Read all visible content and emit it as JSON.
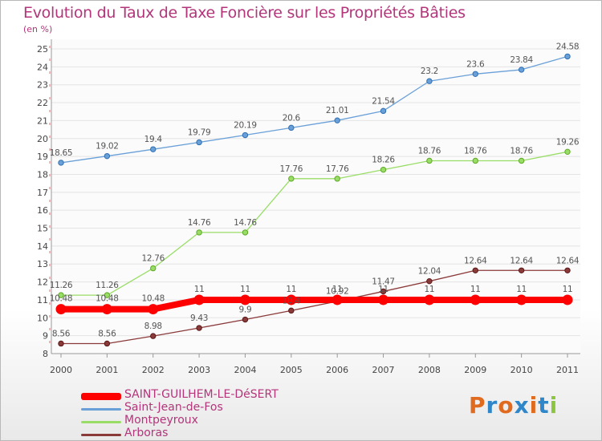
{
  "title": "Evolution du Taux de Taxe Foncière sur les Propriétés Bâties",
  "subtitle": "(en %)",
  "logo": {
    "text": "Proxiti",
    "letters": [
      "P",
      "r",
      "o",
      "x",
      "i",
      "t",
      "i"
    ],
    "letter_colors": [
      "#e06a1e",
      "#2f86c8",
      "#e06a1e",
      "#2f86c8",
      "#e06a1e",
      "#2f86c8",
      "#8cc63e"
    ]
  },
  "chart_data": {
    "type": "line",
    "title": "Evolution du Taux de Taxe Foncière sur les Propriétés Bâties",
    "ylabel": "(en %)",
    "xlabel": "",
    "x": [
      "2000",
      "2001",
      "2002",
      "2003",
      "2004",
      "2005",
      "2006",
      "2007",
      "2008",
      "2009",
      "2010",
      "2011"
    ],
    "ylim": [
      8,
      25
    ],
    "yticks": [
      8,
      9,
      10,
      11,
      12,
      13,
      14,
      15,
      16,
      17,
      18,
      19,
      20,
      21,
      22,
      23,
      24,
      25
    ],
    "grid": "horizontal",
    "legend_position": "bottom-left",
    "series": [
      {
        "name": "SAINT-GUILHEM-LE-DéSERT",
        "color": "#ff0000",
        "values": [
          10.48,
          10.48,
          10.48,
          11,
          11,
          11,
          11,
          11,
          11,
          11,
          11,
          11
        ],
        "labels": [
          "10.48",
          "10.48",
          "10.48",
          "11",
          "11",
          "11",
          "11",
          "11",
          "11",
          "11",
          "11",
          "11"
        ]
      },
      {
        "name": "Saint-Jean-de-Fos",
        "color": "#6aa0d8",
        "values": [
          18.65,
          19.02,
          19.4,
          19.79,
          20.19,
          20.6,
          21.01,
          21.54,
          23.2,
          23.6,
          23.84,
          24.58
        ],
        "labels": [
          "18.65",
          "19.02",
          "19.4",
          "19.79",
          "20.19",
          "20.6",
          "21.01",
          "21.54",
          "23.2",
          "23.6",
          "23.84",
          "24.58"
        ]
      },
      {
        "name": "Montpeyroux",
        "color": "#99dd66",
        "values": [
          11.26,
          11.26,
          12.76,
          14.76,
          14.76,
          17.76,
          17.76,
          18.26,
          18.76,
          18.76,
          18.76,
          19.26
        ],
        "labels": [
          "11.26",
          "11.26",
          "12.76",
          "14.76",
          "14.76",
          "17.76",
          "17.76",
          "18.26",
          "18.76",
          "18.76",
          "18.76",
          "19.26"
        ]
      },
      {
        "name": "Arboras",
        "color": "#8b3a3a",
        "values": [
          8.56,
          8.56,
          8.98,
          9.43,
          9.9,
          10.4,
          10.92,
          11.47,
          12.04,
          12.64,
          12.64,
          12.64
        ],
        "labels": [
          "8.56",
          "8.56",
          "8.98",
          "9.43",
          "9.9",
          "10.4",
          "10.92",
          "11.47",
          "12.04",
          "12.64",
          "12.64",
          "12.64"
        ]
      }
    ]
  }
}
